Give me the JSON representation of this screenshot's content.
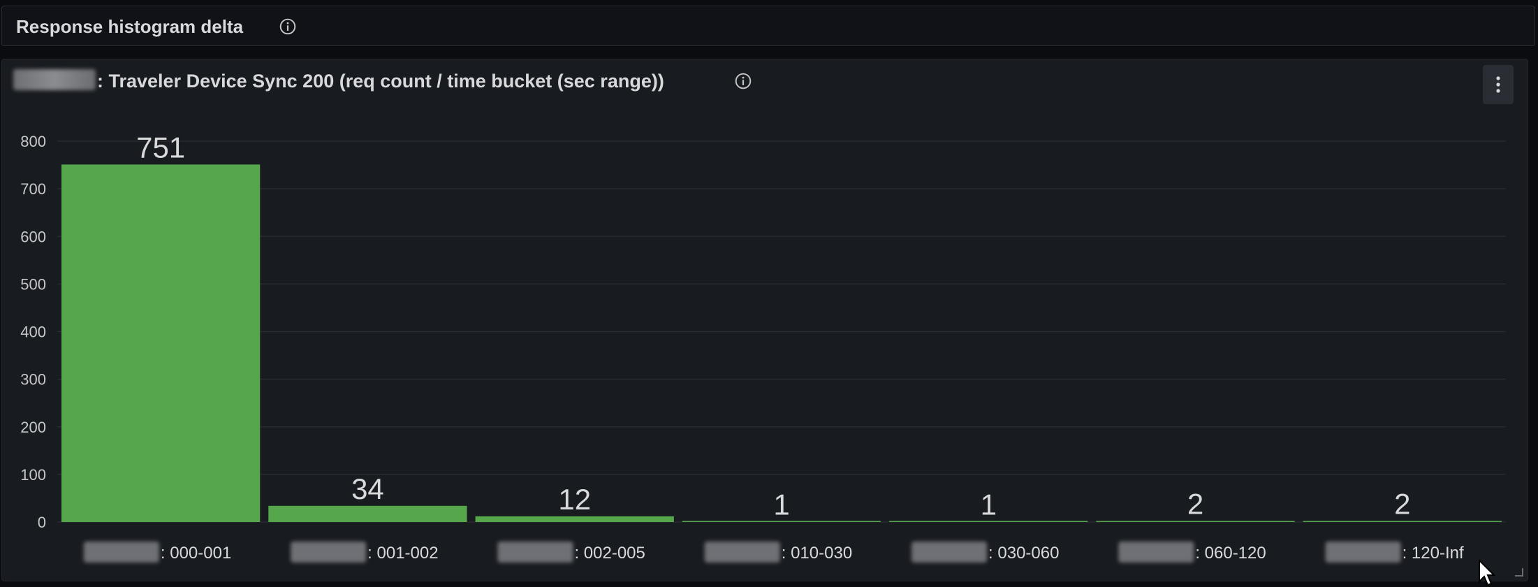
{
  "row": {
    "title": "Response histogram delta"
  },
  "panel": {
    "title": ": Traveler Device Sync 200 (req count / time bucket (sec range))"
  },
  "colors": {
    "bar": "#56a64b",
    "grid": "#2b2e33",
    "background": "#181b1f"
  },
  "chart_data": {
    "type": "bar",
    "title": ": Traveler Device Sync 200 (req count / time bucket (sec range))",
    "categories": [
      ": 000-001",
      ": 001-002",
      ": 002-005",
      ": 010-030",
      ": 030-060",
      ": 060-120",
      ": 120-Inf"
    ],
    "values": [
      751,
      34,
      12,
      1,
      1,
      2,
      2
    ],
    "ylim": [
      0,
      800
    ],
    "yticks": [
      0,
      100,
      200,
      300,
      400,
      500,
      600,
      700,
      800
    ],
    "grid": true,
    "legend": "none"
  }
}
